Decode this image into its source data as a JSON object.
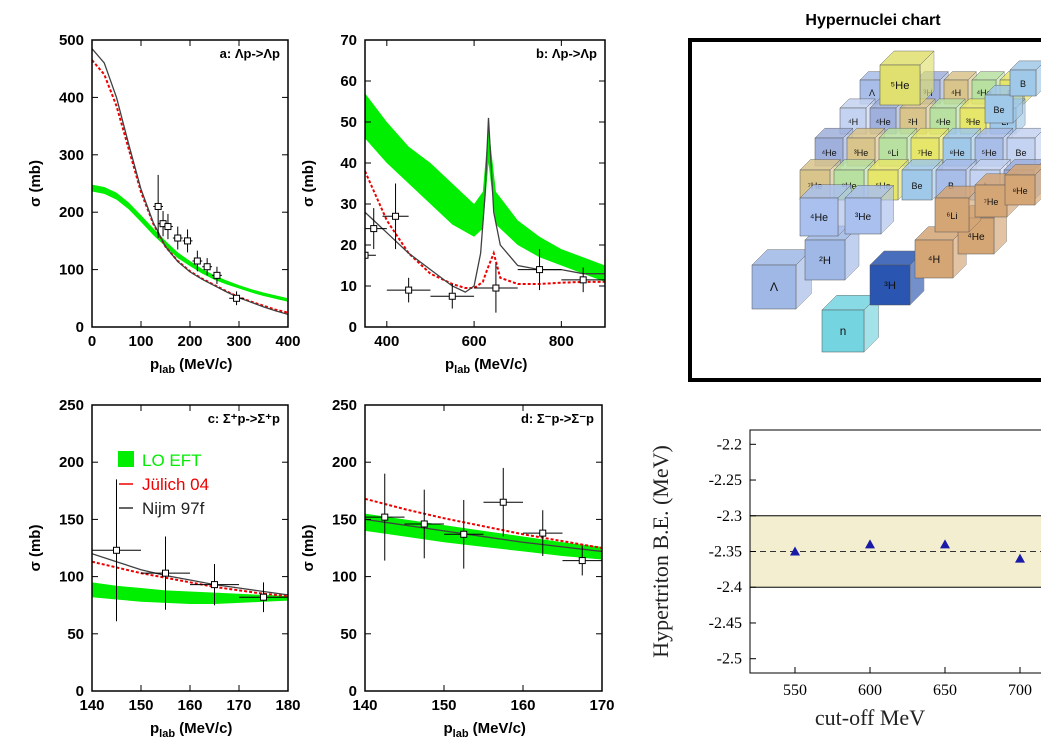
{
  "colors": {
    "lo_eft": "#00ee00",
    "julich": "#ee0000",
    "nijm": "#404040",
    "band": "#f3eed0",
    "marker": "#1a1aa8"
  },
  "chart_data": [
    {
      "type": "line",
      "panel_label": "a: Λp->Λp",
      "xlabel_main": "p",
      "xlabel_sub": "lab",
      "xlabel_unit": "(MeV/c)",
      "ylabel": "σ (mb)",
      "xlim": [
        0,
        400
      ],
      "ylim": [
        0,
        500
      ],
      "xticks": [
        "0",
        "100",
        "200",
        "300",
        "400"
      ],
      "yticks": [
        "0",
        "100",
        "200",
        "300",
        "400",
        "500"
      ],
      "band": {
        "x": [
          0,
          25,
          50,
          75,
          100,
          125,
          150,
          175,
          200,
          225,
          250,
          275,
          300,
          325,
          350,
          375,
          400
        ],
        "lo": [
          236,
          232,
          222,
          205,
          183,
          160,
          140,
          120,
          106,
          93,
          82,
          74,
          67,
          60,
          54,
          49,
          44
        ],
        "hi": [
          248,
          244,
          234,
          217,
          195,
          172,
          150,
          130,
          115,
          101,
          90,
          81,
          73,
          66,
          60,
          55,
          50
        ]
      },
      "series": [
        {
          "name": "Jülich 04",
          "x": [
            0,
            25,
            50,
            75,
            100,
            125,
            150,
            175,
            200,
            225,
            250,
            275,
            300,
            325,
            350,
            375,
            400
          ],
          "y": [
            465,
            440,
            385,
            310,
            235,
            180,
            140,
            115,
            97,
            84,
            73,
            62,
            52,
            44,
            37,
            30,
            25
          ]
        },
        {
          "name": "Nijm 97f",
          "x": [
            0,
            25,
            50,
            75,
            100,
            125,
            150,
            175,
            200,
            225,
            250,
            275,
            300,
            325,
            350,
            375,
            400
          ],
          "y": [
            485,
            460,
            400,
            318,
            240,
            182,
            140,
            114,
            96,
            83,
            72,
            61,
            51,
            43,
            35,
            28,
            22
          ]
        }
      ],
      "points": [
        {
          "x": 135,
          "y": 210,
          "dx": 10,
          "dy": 55
        },
        {
          "x": 145,
          "y": 180,
          "dx": 10,
          "dy": 22
        },
        {
          "x": 155,
          "y": 175,
          "dx": 10,
          "dy": 22
        },
        {
          "x": 175,
          "y": 155,
          "dx": 10,
          "dy": 20
        },
        {
          "x": 195,
          "y": 150,
          "dx": 10,
          "dy": 20
        },
        {
          "x": 215,
          "y": 115,
          "dx": 10,
          "dy": 18
        },
        {
          "x": 235,
          "y": 105,
          "dx": 10,
          "dy": 15
        },
        {
          "x": 255,
          "y": 90,
          "dx": 10,
          "dy": 15
        },
        {
          "x": 295,
          "y": 50,
          "dx": 15,
          "dy": 12
        }
      ]
    },
    {
      "type": "line",
      "panel_label": "b: Λp->Λp",
      "xlabel_main": "p",
      "xlabel_sub": "lab",
      "xlabel_unit": "(MeV/c)",
      "ylabel": "σ (mb)",
      "xlim": [
        350,
        900
      ],
      "ylim": [
        0,
        70
      ],
      "xticks": [
        "400",
        "600",
        "800"
      ],
      "xtick_values": [
        400,
        600,
        800
      ],
      "yticks": [
        "0",
        "10",
        "20",
        "30",
        "40",
        "50",
        "60",
        "70"
      ],
      "band": {
        "x": [
          350,
          400,
          450,
          500,
          550,
          600,
          620,
          633,
          650,
          700,
          750,
          800,
          850,
          900
        ],
        "lo": [
          46,
          40,
          35,
          30,
          25,
          22,
          24,
          40,
          25,
          20,
          17,
          15,
          13,
          11
        ],
        "hi": [
          57,
          50,
          44,
          40,
          35,
          30,
          33,
          49,
          33,
          26,
          22,
          19,
          17,
          15
        ]
      },
      "series": [
        {
          "name": "Jülich 04",
          "x": [
            350,
            400,
            450,
            500,
            550,
            580,
            600,
            620,
            630,
            645,
            660,
            700,
            750,
            800,
            850,
            900
          ],
          "y": [
            38,
            26,
            18,
            13,
            10.5,
            9.5,
            9.5,
            11,
            14,
            18,
            12,
            10.5,
            10.5,
            10.8,
            11,
            11
          ]
        },
        {
          "name": "Nijm 97f",
          "x": [
            350,
            400,
            450,
            500,
            550,
            580,
            600,
            615,
            625,
            633,
            645,
            660,
            700,
            750,
            800,
            850,
            900
          ],
          "y": [
            28,
            23,
            18,
            14,
            10,
            8.5,
            10,
            18,
            32,
            51,
            28,
            20,
            15,
            14,
            14,
            13,
            13
          ]
        }
      ],
      "points": [
        {
          "x": 350,
          "y": 17.5,
          "dx": 25,
          "dy": 7
        },
        {
          "x": 370,
          "y": 24,
          "dx": 30,
          "dy": 5
        },
        {
          "x": 420,
          "y": 27,
          "dx": 30,
          "dy": 8
        },
        {
          "x": 450,
          "y": 9,
          "dx": 50,
          "dy": 3
        },
        {
          "x": 550,
          "y": 7.5,
          "dx": 50,
          "dy": 3
        },
        {
          "x": 650,
          "y": 9.5,
          "dx": 50,
          "dy": 6
        },
        {
          "x": 750,
          "y": 14,
          "dx": 50,
          "dy": 5
        },
        {
          "x": 850,
          "y": 11.5,
          "dx": 50,
          "dy": 3
        }
      ]
    },
    {
      "type": "line",
      "panel_label": "c: Σ⁺p->Σ⁺p",
      "xlabel_main": "p",
      "xlabel_sub": "lab",
      "xlabel_unit": "(MeV/c)",
      "ylabel": "σ (mb)",
      "xlim": [
        140,
        180
      ],
      "ylim": [
        0,
        250
      ],
      "xticks": [
        "140",
        "150",
        "160",
        "170",
        "180"
      ],
      "yticks": [
        "0",
        "50",
        "100",
        "150",
        "200",
        "250"
      ],
      "band": {
        "x": [
          140,
          145,
          150,
          155,
          160,
          165,
          170,
          175,
          180
        ],
        "lo": [
          82,
          80,
          78,
          77,
          76,
          76,
          77,
          78,
          79
        ],
        "hi": [
          95,
          92,
          90,
          88,
          87,
          86,
          85,
          84,
          83
        ]
      },
      "series": [
        {
          "name": "Jülich 04",
          "x": [
            140,
            145,
            150,
            155,
            160,
            165,
            170,
            175,
            180
          ],
          "y": [
            113,
            108,
            103,
            99,
            95,
            91,
            88,
            85,
            83
          ]
        },
        {
          "name": "Nijm 97f",
          "x": [
            140,
            145,
            150,
            155,
            160,
            165,
            170,
            175,
            180
          ],
          "y": [
            120,
            113,
            106,
            101,
            97,
            93,
            90,
            87,
            84
          ]
        }
      ],
      "points": [
        {
          "x": 145,
          "y": 123,
          "dx": 5,
          "dy": 62
        },
        {
          "x": 155,
          "y": 103,
          "dx": 5,
          "dy": 32
        },
        {
          "x": 165,
          "y": 93,
          "dx": 5,
          "dy": 18
        },
        {
          "x": 175,
          "y": 82,
          "dx": 5,
          "dy": 13
        }
      ]
    },
    {
      "type": "line",
      "panel_label": "d: Σ⁻p->Σ⁻p",
      "xlabel_main": "p",
      "xlabel_sub": "lab",
      "xlabel_unit": "(MeV/c)",
      "ylabel": "σ (mb)",
      "xlim": [
        140,
        170
      ],
      "ylim": [
        0,
        250
      ],
      "xticks": [
        "140",
        "150",
        "160",
        "170"
      ],
      "yticks": [
        "0",
        "50",
        "100",
        "150",
        "200",
        "250"
      ],
      "band": {
        "x": [
          140,
          145,
          150,
          155,
          160,
          165,
          170
        ],
        "lo": [
          140,
          135,
          130,
          126,
          122,
          118,
          115
        ],
        "hi": [
          155,
          150,
          145,
          140,
          135,
          130,
          126
        ]
      },
      "series": [
        {
          "name": "Jülich 04",
          "x": [
            140,
            145,
            150,
            155,
            160,
            165,
            170
          ],
          "y": [
            168,
            159,
            151,
            144,
            137,
            131,
            125
          ]
        },
        {
          "name": "Nijm 97f",
          "x": [
            140,
            145,
            150,
            155,
            160,
            165,
            170
          ],
          "y": [
            150,
            145,
            140,
            135,
            130,
            126,
            122
          ]
        }
      ],
      "points": [
        {
          "x": 142.5,
          "y": 152,
          "dx": 2.5,
          "dy": 38
        },
        {
          "x": 147.5,
          "y": 146,
          "dx": 2.5,
          "dy": 30
        },
        {
          "x": 152.5,
          "y": 137,
          "dx": 2.5,
          "dy": 30
        },
        {
          "x": 157.5,
          "y": 165,
          "dx": 2.5,
          "dy": 30
        },
        {
          "x": 162.5,
          "y": 138,
          "dx": 2.5,
          "dy": 20
        },
        {
          "x": 167.5,
          "y": 114,
          "dx": 2.5,
          "dy": 13
        }
      ]
    },
    {
      "type": "scatter",
      "xlabel": "cut-off MeV",
      "ylabel": "Hypertriton B.E. (MeV)",
      "xlim": [
        520,
        720
      ],
      "ylim": [
        -2.52,
        -2.18
      ],
      "xticks": [
        "550",
        "600",
        "650",
        "700"
      ],
      "xtick_values": [
        550,
        600,
        650,
        700
      ],
      "yticks": [
        "-2.2",
        "-2.25",
        "-2.3",
        "-2.35",
        "-2.4",
        "-2.45",
        "-2.5"
      ],
      "ytick_values": [
        -2.2,
        -2.25,
        -2.3,
        -2.35,
        -2.4,
        -2.45,
        -2.5
      ],
      "band": {
        "y0": -2.4,
        "y1": -2.3
      },
      "reference_line": -2.35,
      "x": [
        550,
        600,
        650,
        700
      ],
      "y": [
        -2.35,
        -2.34,
        -2.34,
        -2.36
      ]
    }
  ],
  "legend": {
    "items": [
      {
        "label": "LO EFT",
        "color": "#00ee00",
        "style": "box"
      },
      {
        "label": "Jülich 04",
        "color": "#ee0000",
        "style": "line"
      },
      {
        "label": "Nijm 97f",
        "color": "#333333",
        "style": "line"
      }
    ]
  },
  "hypernuclei_chart": {
    "title": "Hypernuclei chart",
    "cubes": [
      {
        "label": "Λ",
        "color": "#9fb8e6"
      },
      {
        "label": "n",
        "color": "#74d4e0"
      },
      {
        "label": "³H",
        "color": "#2a55b0"
      },
      {
        "label": "⁴H",
        "color": "#d4a575"
      },
      {
        "label": "⁴He",
        "color": "#d4a575"
      },
      {
        "label": "²H",
        "color": "#9fb8e6"
      },
      {
        "label": "⁴He",
        "color": "#aac0ee"
      },
      {
        "label": "³He",
        "color": "#aac0ee"
      },
      {
        "label": "⁶Li",
        "color": "#d4a575"
      },
      {
        "label": "⁷He",
        "color": "#d4a575"
      },
      {
        "label": "⁸He",
        "color": "#d4a575"
      },
      {
        "label": "⁵He",
        "color": "#e0e070"
      },
      {
        "label": "Be",
        "color": "#a0c8e8"
      },
      {
        "label": "B",
        "color": "#a0c8e8"
      }
    ]
  }
}
